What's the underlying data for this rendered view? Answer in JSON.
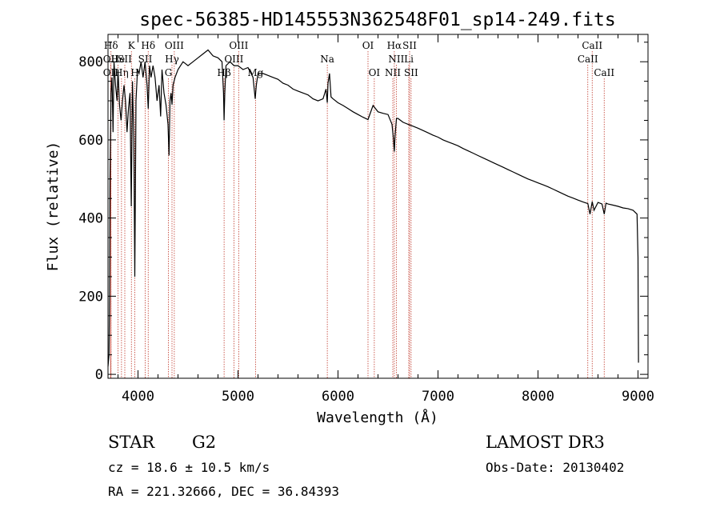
{
  "chart_data": {
    "type": "line",
    "title": "spec-56385-HD145553N362548F01_sp14-249.fits",
    "xlabel": "Wavelength (Å)",
    "ylabel": "Flux (relative)",
    "xlim": [
      3700,
      9100
    ],
    "ylim": [
      -10,
      870
    ],
    "x_ticks": [
      4000,
      5000,
      6000,
      7000,
      8000,
      9000
    ],
    "y_ticks": [
      0,
      200,
      400,
      600,
      800
    ],
    "series": [
      {
        "name": "spectrum",
        "x": [
          3700,
          3710,
          3715,
          3720,
          3730,
          3740,
          3750,
          3760,
          3775,
          3790,
          3800,
          3815,
          3830,
          3845,
          3860,
          3875,
          3890,
          3905,
          3920,
          3933,
          3945,
          3958,
          3968,
          3980,
          3995,
          4010,
          4030,
          4050,
          4070,
          4090,
          4102,
          4115,
          4130,
          4150,
          4170,
          4190,
          4210,
          4226,
          4240,
          4260,
          4280,
          4300,
          4310,
          4320,
          4330,
          4340,
          4350,
          4370,
          4400,
          4450,
          4500,
          4550,
          4600,
          4650,
          4700,
          4750,
          4800,
          4840,
          4855,
          4861,
          4868,
          4880,
          4920,
          4960,
          5000,
          5050,
          5100,
          5150,
          5172,
          5183,
          5200,
          5250,
          5300,
          5350,
          5400,
          5450,
          5500,
          5550,
          5600,
          5650,
          5700,
          5750,
          5800,
          5850,
          5880,
          5893,
          5900,
          5915,
          5930,
          5950,
          6000,
          6050,
          6100,
          6150,
          6200,
          6250,
          6300,
          6350,
          6400,
          6450,
          6500,
          6540,
          6555,
          6563,
          6570,
          6585,
          6600,
          6650,
          6700,
          6750,
          6800,
          6850,
          6900,
          6950,
          7000,
          7050,
          7100,
          7150,
          7200,
          7250,
          7300,
          7350,
          7400,
          7450,
          7500,
          7550,
          7600,
          7650,
          7700,
          7750,
          7800,
          7850,
          7900,
          7950,
          8000,
          8050,
          8100,
          8150,
          8200,
          8250,
          8300,
          8350,
          8400,
          8450,
          8498,
          8520,
          8542,
          8560,
          8600,
          8640,
          8662,
          8680,
          8700,
          8750,
          8800,
          8850,
          8900,
          8950,
          8990,
          9000,
          9005
        ],
        "y": [
          20,
          50,
          200,
          500,
          720,
          760,
          620,
          800,
          740,
          700,
          780,
          690,
          650,
          700,
          740,
          700,
          620,
          680,
          720,
          430,
          750,
          600,
          250,
          700,
          780,
          770,
          800,
          760,
          800,
          740,
          680,
          790,
          760,
          790,
          760,
          700,
          740,
          660,
          780,
          720,
          690,
          640,
          560,
          700,
          720,
          690,
          740,
          760,
          780,
          800,
          790,
          800,
          810,
          820,
          830,
          815,
          810,
          800,
          720,
          650,
          720,
          790,
          800,
          790,
          790,
          780,
          785,
          760,
          705,
          740,
          770,
          770,
          765,
          760,
          755,
          745,
          740,
          730,
          725,
          720,
          715,
          705,
          700,
          705,
          730,
          695,
          745,
          770,
          710,
          705,
          695,
          688,
          680,
          672,
          665,
          658,
          652,
          688,
          672,
          668,
          665,
          640,
          600,
          570,
          610,
          655,
          655,
          645,
          640,
          635,
          630,
          624,
          618,
          612,
          607,
          600,
          595,
          590,
          585,
          578,
          572,
          566,
          560,
          554,
          548,
          542,
          536,
          530,
          524,
          518,
          512,
          506,
          500,
          495,
          490,
          485,
          480,
          474,
          468,
          462,
          456,
          451,
          446,
          441,
          437,
          410,
          442,
          420,
          440,
          436,
          410,
          438,
          436,
          433,
          430,
          426,
          424,
          420,
          410,
          300,
          30
        ]
      }
    ],
    "line_markers": [
      {
        "label": "Hδ",
        "x": 3730,
        "row": 1
      },
      {
        "label": "OII",
        "x": 3727,
        "row": 2
      },
      {
        "label": "OII",
        "x": 3727,
        "row": 3
      },
      {
        "label": "He",
        "x": 3800,
        "row": 2
      },
      {
        "label": "Hη",
        "x": 3835,
        "row": 3
      },
      {
        "label": "K",
        "x": 3934,
        "row": 1
      },
      {
        "label": "SII",
        "x": 3868,
        "row": 2
      },
      {
        "label": "H",
        "x": 3968,
        "row": 3
      },
      {
        "label": "Hδ",
        "x": 4102,
        "row": 1
      },
      {
        "label": "SII",
        "x": 4072,
        "row": 2
      },
      {
        "label": "OIII",
        "x": 4363,
        "row": 1
      },
      {
        "label": "Hγ",
        "x": 4340,
        "row": 2
      },
      {
        "label": "G",
        "x": 4304,
        "row": 3
      },
      {
        "label": "Hβ",
        "x": 4861,
        "row": 3
      },
      {
        "label": "OIII",
        "x": 5007,
        "row": 1
      },
      {
        "label": "OIII",
        "x": 4959,
        "row": 2
      },
      {
        "label": "Mg",
        "x": 5175,
        "row": 3
      },
      {
        "label": "Na",
        "x": 5893,
        "row": 2
      },
      {
        "label": "OI",
        "x": 6300,
        "row": 1
      },
      {
        "label": "OI",
        "x": 6363,
        "row": 3
      },
      {
        "label": "Hα",
        "x": 6563,
        "row": 1
      },
      {
        "label": "SII",
        "x": 6716,
        "row": 1
      },
      {
        "label": "NII",
        "x": 6583,
        "row": 2
      },
      {
        "label": "Li",
        "x": 6708,
        "row": 2
      },
      {
        "label": "NII",
        "x": 6548,
        "row": 3
      },
      {
        "label": "SII",
        "x": 6731,
        "row": 3
      },
      {
        "label": "CaII",
        "x": 8542,
        "row": 1
      },
      {
        "label": "CaII",
        "x": 8498,
        "row": 2
      },
      {
        "label": "CaII",
        "x": 8662,
        "row": 3
      }
    ],
    "grid": false
  },
  "info": {
    "object_class": "STAR",
    "subclass": "G2",
    "survey": "LAMOST DR3",
    "redshift_line": "cz = 18.6 ± 10.5 km/s",
    "obs_date_line": "Obs-Date: 20130402",
    "coords_line": "RA = 221.32666, DEC =  36.84393"
  },
  "colors": {
    "axes": "#000000",
    "spectrum": "#000000",
    "markers": "#c0392b"
  }
}
